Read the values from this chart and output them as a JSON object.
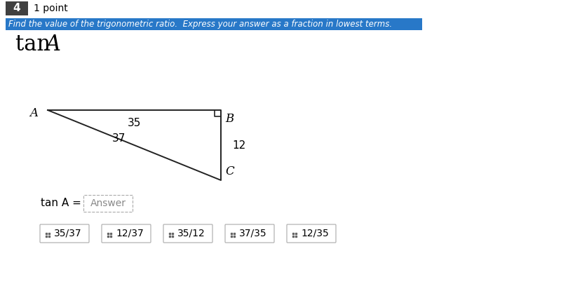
{
  "question_number": "4",
  "points": "1 point",
  "instruction": "Find the value of the trigonometric ratio.  Express your answer as a fraction in lowest terms.",
  "trig_expression_roman": "tan ",
  "trig_expression_italic": "A",
  "triangle": {
    "label_A": "A",
    "label_B": "B",
    "label_C": "C",
    "side_AB": "35",
    "side_BC": "12",
    "side_AC": "37"
  },
  "answer_label": "tan A = ",
  "answer_placeholder": "Answer",
  "choices": [
    "35/37",
    "12/37",
    "35/12",
    "37/35",
    "12/35"
  ],
  "bg_color": "#ffffff",
  "instruction_bg": "#2878c8",
  "instruction_text_color": "#ffffff",
  "body_text_color": "#000000",
  "number_bg": "#404040",
  "number_text_color": "#ffffff",
  "answer_box_edge": "#aaaaaa",
  "choice_box_edge": "#aaaaaa"
}
